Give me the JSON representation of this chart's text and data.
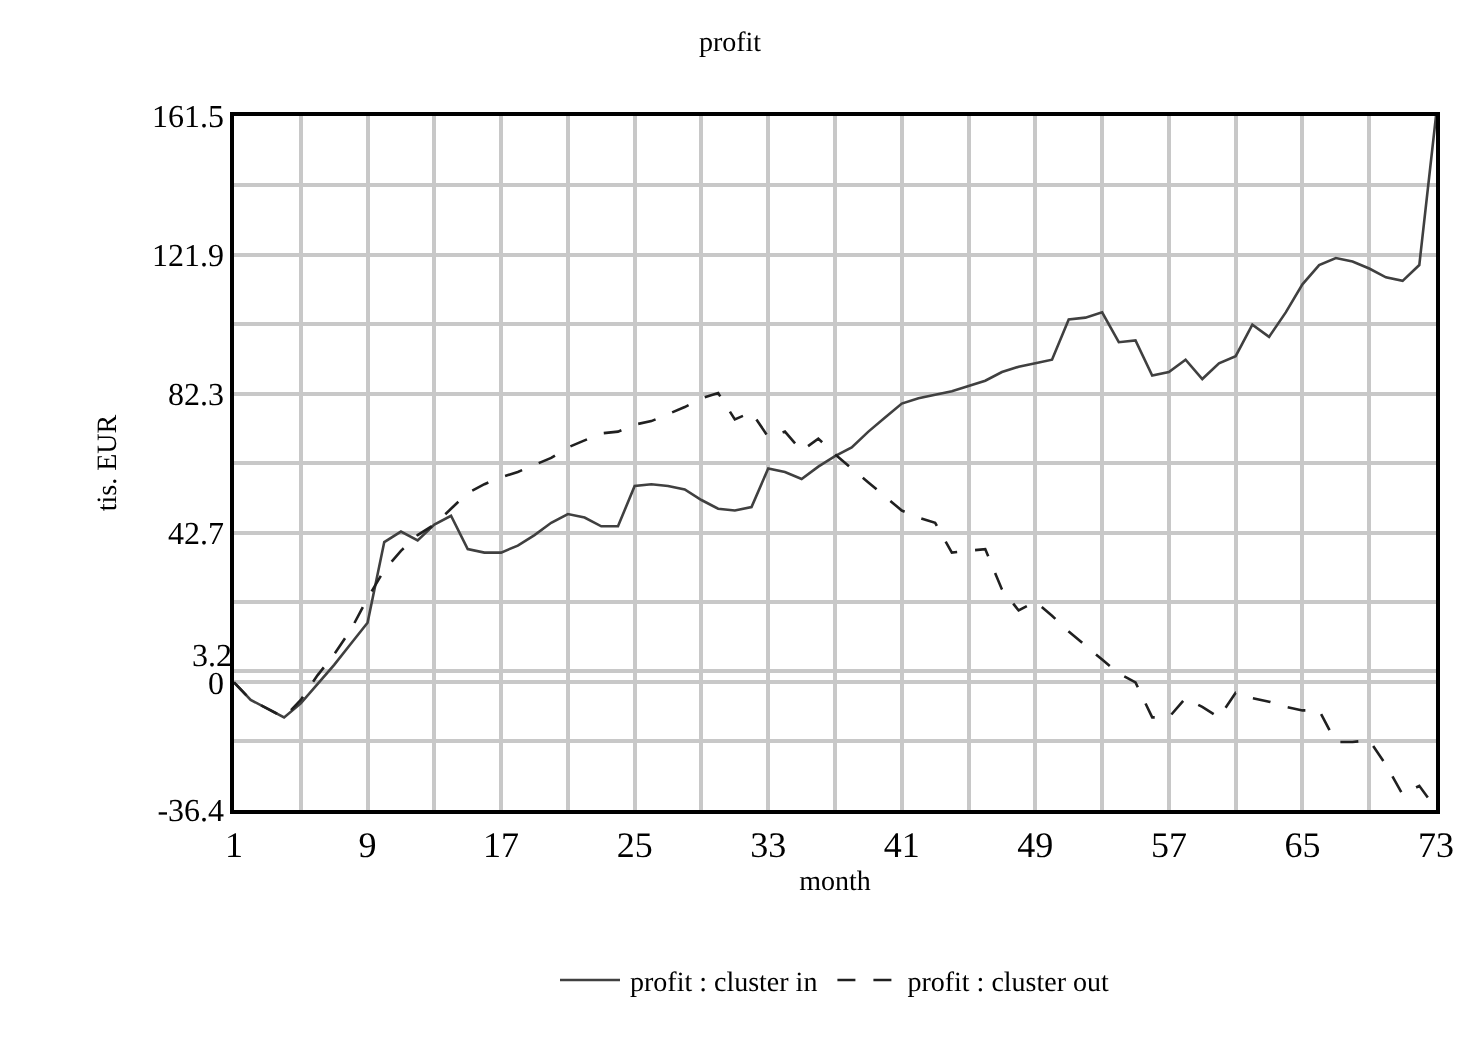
{
  "chart_data": {
    "type": "line",
    "title": "profit",
    "xlabel": "month",
    "ylabel": "tis. EUR",
    "x": [
      1,
      2,
      3,
      4,
      5,
      6,
      7,
      8,
      9,
      10,
      11,
      12,
      13,
      14,
      15,
      16,
      17,
      18,
      19,
      20,
      21,
      22,
      23,
      24,
      25,
      26,
      27,
      28,
      29,
      30,
      31,
      32,
      33,
      34,
      35,
      36,
      37,
      38,
      39,
      40,
      41,
      42,
      43,
      44,
      45,
      46,
      47,
      48,
      49,
      50,
      51,
      52,
      53,
      54,
      55,
      56,
      57,
      58,
      59,
      60,
      61,
      62,
      63,
      64,
      65,
      66,
      67,
      68,
      69,
      70,
      71,
      72,
      73
    ],
    "series": [
      {
        "name": "profit : cluster in",
        "color": "#404040",
        "line_style": "solid",
        "values": [
          0,
          -5,
          -7.5,
          -10,
          -6,
          -0.5,
          5,
          11,
          17,
          40,
          43,
          40.5,
          45,
          47.5,
          38,
          37,
          37,
          39,
          42,
          45.5,
          48,
          47,
          44.5,
          44.5,
          56,
          56.5,
          56,
          55,
          52,
          49.5,
          49,
          50,
          61,
          60,
          58,
          61.5,
          64.5,
          67,
          71.5,
          75.5,
          79.5,
          81,
          82,
          83,
          84.5,
          86,
          88.5,
          90,
          91,
          92,
          103.5,
          104,
          105.5,
          97,
          97.5,
          87.5,
          88.5,
          92,
          86.5,
          91,
          93,
          102,
          98.5,
          105.5,
          113.5,
          119,
          121,
          120,
          118,
          115.5,
          114.5,
          119,
          161.5
        ]
      },
      {
        "name": "profit : cluster out",
        "color": "#202020",
        "line_style": "dashed",
        "values": [
          0,
          -5,
          -7.5,
          -10,
          -5,
          2,
          8,
          15,
          24,
          32,
          37.5,
          42,
          45,
          49.5,
          54,
          56.5,
          58.5,
          60,
          62,
          64,
          67,
          69,
          71,
          71.5,
          73.5,
          74.5,
          76.5,
          78.5,
          81,
          82.5,
          75,
          77,
          70,
          71.5,
          66,
          69.5,
          65,
          61,
          57,
          53,
          49,
          47,
          45.5,
          37,
          37.5,
          38,
          26.5,
          20.5,
          23,
          19,
          14.5,
          10.5,
          6.5,
          2.5,
          0,
          -10,
          -10,
          -4.5,
          -7,
          -10,
          -3,
          -4.5,
          -5.5,
          -7,
          -8,
          -8,
          -17,
          -17,
          -16.5,
          -23.5,
          -32,
          -29.5,
          -36
        ]
      }
    ],
    "xlim": [
      1,
      73
    ],
    "xticks": [
      1,
      {
        "value": 5,
        "label": null
      },
      9,
      {
        "value": 13,
        "label": null
      },
      17,
      {
        "value": 21,
        "label": null
      },
      25,
      {
        "value": 29,
        "label": null
      },
      33,
      {
        "value": 37,
        "label": null
      },
      41,
      {
        "value": 45,
        "label": null
      },
      49,
      {
        "value": 53,
        "label": null
      },
      57,
      {
        "value": 61,
        "label": null
      },
      65,
      {
        "value": 69,
        "label": null
      },
      73
    ],
    "ylim": [
      -36.4,
      161.5
    ],
    "yticks": [
      -36.4,
      {
        "value": -16.6,
        "label": null
      },
      0,
      3.2,
      {
        "value": 23,
        "label": null
      },
      42.7,
      {
        "value": 62.5,
        "label": null
      },
      82.3,
      {
        "value": 102.1,
        "label": null
      },
      121.9,
      {
        "value": 141.7,
        "label": null
      },
      161.5
    ],
    "grid": true,
    "legend": "bottom",
    "marker": "none"
  }
}
